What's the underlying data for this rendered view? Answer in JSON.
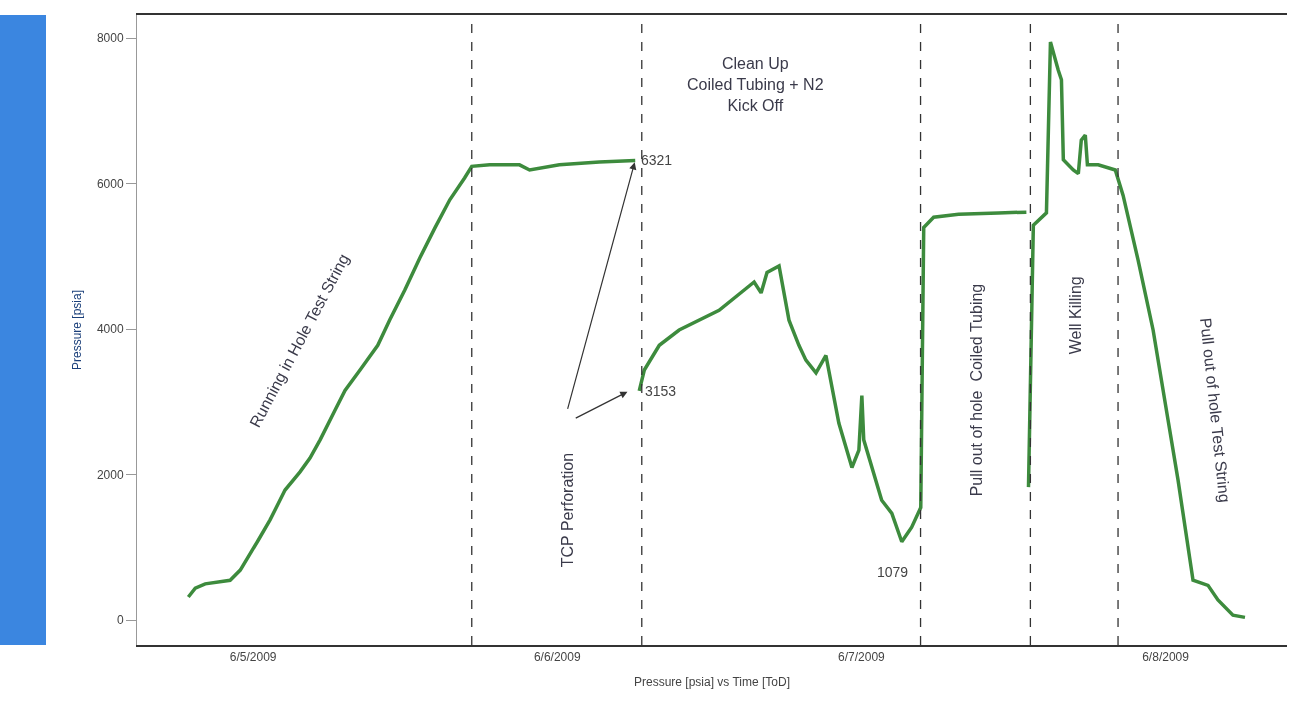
{
  "chart_data": {
    "type": "line",
    "xlabel": "Pressure [psia] vs Time [ToD]",
    "ylabel": "Pressure [psia]",
    "x": [
      "2009-06-05T06:53",
      "2009-06-05T07:26",
      "2009-06-05T08:13",
      "2009-06-05T10:11",
      "2009-06-05T10:59",
      "2009-06-05T12:24",
      "2009-06-05T13:20",
      "2009-06-05T14:31",
      "2009-06-05T15:42",
      "2009-06-05T16:29",
      "2009-06-05T17:17",
      "2009-06-05T18:28",
      "2009-06-05T19:15",
      "2009-06-05T20:26",
      "2009-06-05T21:50",
      "2009-06-05T22:47",
      "2009-06-05T23:58",
      "2009-06-06T01:09",
      "2009-06-06T02:20",
      "2009-06-06T03:31",
      "2009-06-06T04:41",
      "2009-06-06T05:15",
      "2009-06-06T06:40",
      "2009-06-06T09:01",
      "2009-06-06T09:49",
      "2009-06-06T12:10",
      "2009-06-06T15:19",
      "2009-06-06T18:09",
      "2009-06-06T18:20",
      "2009-06-06T18:28",
      "2009-06-06T18:52",
      "2009-06-06T20:03",
      "2009-06-06T21:37",
      "2009-06-07T00:46",
      "2009-06-07T03:32",
      "2009-06-07T04:05",
      "2009-06-07T04:33",
      "2009-06-07T05:30",
      "2009-06-07T06:17",
      "2009-06-07T07:04",
      "2009-06-07T07:37",
      "2009-06-07T08:25",
      "2009-06-07T09:12",
      "2009-06-07T10:13",
      "2009-06-07T11:15",
      "2009-06-07T11:48",
      "2009-06-07T12:02",
      "2009-06-07T12:11",
      "2009-06-07T13:36",
      "2009-06-07T14:24",
      "2009-06-07T15:11",
      "2009-06-07T15:58",
      "2009-06-07T16:41",
      "2009-06-07T16:55",
      "2009-06-07T17:42",
      "2009-06-07T19:40",
      "2009-06-07T22:49",
      "2009-06-08T01:01",
      "2009-06-08T01:05",
      "2009-06-08T01:11",
      "2009-06-08T01:34",
      "2009-06-08T02:36",
      "2009-06-08T02:55",
      "2009-06-08T03:32",
      "2009-06-08T03:47",
      "2009-06-08T03:56",
      "2009-06-08T04:43",
      "2009-06-08T05:07",
      "2009-06-08T05:21",
      "2009-06-08T05:40",
      "2009-06-08T05:50",
      "2009-06-08T06:41",
      "2009-06-08T08:02",
      "2009-06-08T08:39",
      "2009-06-08T09:50",
      "2009-06-08T11:01",
      "2009-06-08T12:12",
      "2009-06-08T12:59",
      "2009-06-08T14:10",
      "2009-06-08T15:21",
      "2009-06-08T16:08",
      "2009-06-08T17:19",
      "2009-06-08T18:16"
    ],
    "series": [
      {
        "color": "#3d8b3d",
        "values": [
          320,
          440,
          500,
          550,
          690,
          1100,
          1380,
          1790,
          2040,
          2230,
          2480,
          2890,
          3160,
          3440,
          3780,
          4130,
          4540,
          4980,
          5390,
          5780,
          6080,
          6240,
          6260,
          6260,
          6190,
          6260,
          6300,
          6321,
          null,
          3153,
          3440,
          3780,
          3990,
          4260,
          4650,
          4500,
          4780,
          4870,
          4125,
          3780,
          3575,
          3400,
          3640,
          2710,
          2100,
          2340,
          3090,
          2480,
          1650,
          1470,
          1079,
          1280,
          1550,
          5400,
          5540,
          5580,
          5600,
          5610,
          null,
          1830,
          5430,
          5600,
          7950,
          7560,
          7430,
          6330,
          6190,
          6140,
          6600,
          6670,
          6260,
          6260,
          6190,
          5840,
          4950,
          3990,
          2750,
          1930,
          550,
          480,
          280,
          70,
          40
        ]
      }
    ],
    "xlim": [
      "2009-06-05T02:50",
      "2009-06-08T21:35"
    ],
    "ylim": [
      -340,
      8320
    ],
    "xticks": [
      {
        "value": "2009-06-05T12:00",
        "label": "6/5/2009"
      },
      {
        "value": "2009-06-06T12:00",
        "label": "6/6/2009"
      },
      {
        "value": "2009-06-07T12:00",
        "label": "6/7/2009"
      },
      {
        "value": "2009-06-08T12:00",
        "label": "6/8/2009"
      }
    ],
    "yticks": [
      0,
      2000,
      4000,
      6000,
      8000
    ],
    "grid": false,
    "marker": "none",
    "line_style": "solid",
    "ref_lines": [
      {
        "axis": "x",
        "value": "2009-06-06T05:15",
        "line_style": "dashed",
        "color": "#333333"
      },
      {
        "axis": "x",
        "value": "2009-06-06T18:40",
        "line_style": "dashed",
        "color": "#333333"
      },
      {
        "axis": "x",
        "value": "2009-06-07T16:40",
        "line_style": "dashed",
        "color": "#333333"
      },
      {
        "axis": "x",
        "value": "2009-06-08T01:20",
        "line_style": "dashed",
        "color": "#333333"
      },
      {
        "axis": "x",
        "value": "2009-06-08T08:15",
        "line_style": "dashed",
        "color": "#333333"
      }
    ],
    "annotations": [
      "Running in Hole Test String",
      "TCP Perforation",
      "Clean Up\nCoiled Tubing + N2\nKick Off",
      "Pull out of hole  Coiled Tubing",
      "Well Killing",
      "Pull out of hole Test String",
      {
        "text": "6321",
        "x": "2009-06-06T18:09",
        "y": 6321
      },
      {
        "text": "3153",
        "x": "2009-06-06T18:28",
        "y": 3153
      },
      {
        "text": "1079",
        "x": "2009-06-07T15:11",
        "y": 1079
      }
    ]
  }
}
